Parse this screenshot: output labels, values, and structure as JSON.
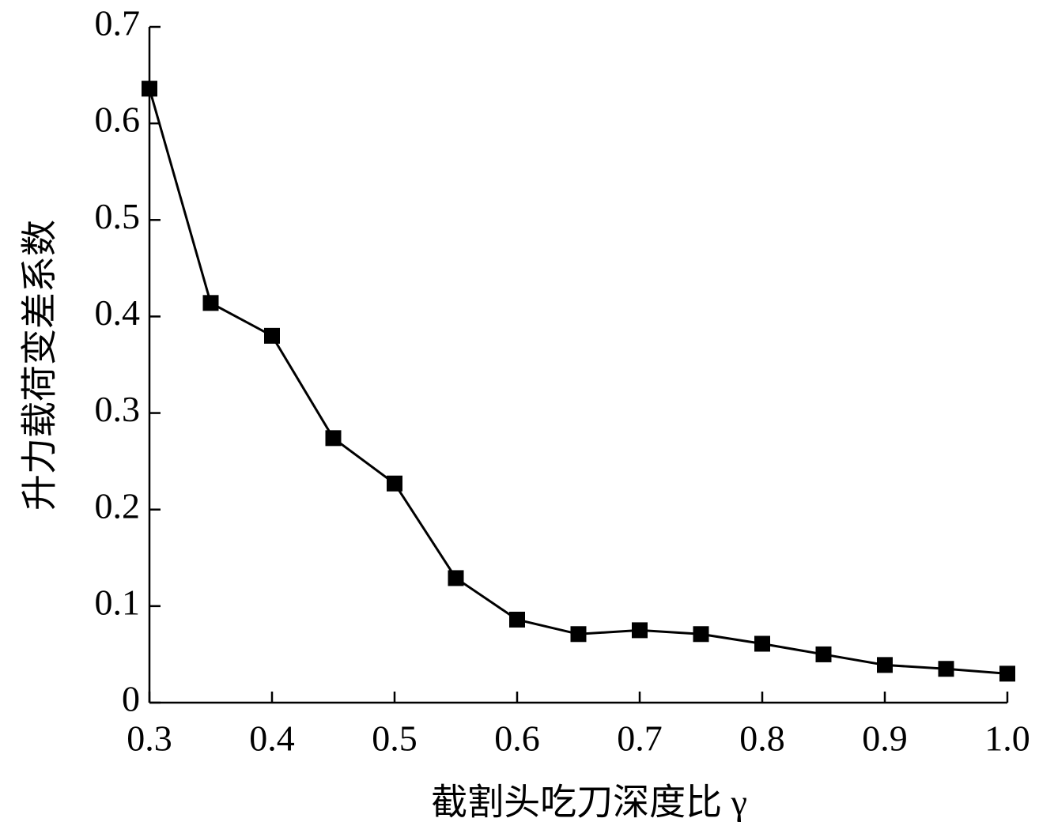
{
  "chart_data": {
    "type": "line",
    "x_label": "截割头吃刀深度比 γ",
    "y_label": "升力载荷变差系数",
    "x": [
      0.3,
      0.35,
      0.4,
      0.45,
      0.5,
      0.55,
      0.6,
      0.65,
      0.7,
      0.75,
      0.8,
      0.85,
      0.9,
      0.95,
      1.0
    ],
    "series": [
      {
        "color": "#000000",
        "values": [
          0.636,
          0.414,
          0.38,
          0.274,
          0.227,
          0.129,
          0.086,
          0.071,
          0.075,
          0.071,
          0.061,
          0.05,
          0.039,
          0.035,
          0.03
        ]
      }
    ],
    "xlim": [
      0.3,
      1.0
    ],
    "ylim": [
      0,
      0.7
    ],
    "xticks": [
      0.3,
      0.4,
      0.5,
      0.6,
      0.7,
      0.8,
      0.9,
      {
        "value": 1.0,
        "label": "1.0"
      }
    ],
    "yticks": [
      0,
      0.1,
      0.2,
      0.3,
      0.4,
      0.5,
      0.6,
      0.7
    ]
  }
}
